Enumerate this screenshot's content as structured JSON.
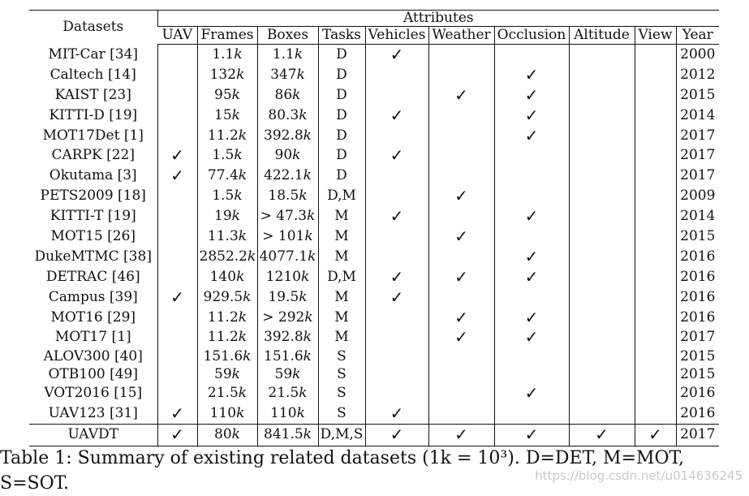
{
  "table": {
    "datasets_header": "Datasets",
    "attributes_header": "Attributes",
    "columns": [
      "UAV",
      "Frames",
      "Boxes",
      "Tasks",
      "Vehicles",
      "Weather",
      "Occlusion",
      "Altitude",
      "View",
      "Year"
    ],
    "check_symbol": "✓",
    "rows": [
      {
        "dataset": "MIT-Car [34]",
        "uav": false,
        "frames": "1.1",
        "boxes": "1.1",
        "tasks": "D",
        "vehicles": true,
        "weather": false,
        "occlusion": false,
        "altitude": false,
        "view": false,
        "year": "2000"
      },
      {
        "dataset": "Caltech [14]",
        "uav": false,
        "frames": "132",
        "boxes": "347",
        "tasks": "D",
        "vehicles": false,
        "weather": false,
        "occlusion": true,
        "altitude": false,
        "view": false,
        "year": "2012"
      },
      {
        "dataset": "KAIST [23]",
        "uav": false,
        "frames": "95",
        "boxes": "86",
        "tasks": "D",
        "vehicles": false,
        "weather": true,
        "occlusion": true,
        "altitude": false,
        "view": false,
        "year": "2015"
      },
      {
        "dataset": "KITTI-D [19]",
        "uav": false,
        "frames": "15",
        "boxes": "80.3",
        "tasks": "D",
        "vehicles": true,
        "weather": false,
        "occlusion": true,
        "altitude": false,
        "view": false,
        "year": "2014"
      },
      {
        "dataset": "MOT17Det [1]",
        "uav": false,
        "frames": "11.2",
        "boxes": "392.8",
        "tasks": "D",
        "vehicles": false,
        "weather": false,
        "occlusion": true,
        "altitude": false,
        "view": false,
        "year": "2017"
      },
      {
        "dataset": "CARPK [22]",
        "uav": true,
        "frames": "1.5",
        "boxes": "90",
        "tasks": "D",
        "vehicles": true,
        "weather": false,
        "occlusion": false,
        "altitude": false,
        "view": false,
        "year": "2017"
      },
      {
        "dataset": "Okutama [3]",
        "uav": true,
        "frames": "77.4",
        "boxes": "422.1",
        "tasks": "D",
        "vehicles": false,
        "weather": false,
        "occlusion": false,
        "altitude": false,
        "view": false,
        "year": "2017"
      },
      {
        "dataset": "PETS2009 [18]",
        "uav": false,
        "frames": "1.5",
        "boxes": "18.5",
        "tasks": "D,M",
        "vehicles": false,
        "weather": true,
        "occlusion": false,
        "altitude": false,
        "view": false,
        "year": "2009"
      },
      {
        "dataset": "KITTI-T [19]",
        "uav": false,
        "frames": "19",
        "boxes": "> 47.3",
        "tasks": "M",
        "vehicles": true,
        "weather": false,
        "occlusion": true,
        "altitude": false,
        "view": false,
        "year": "2014"
      },
      {
        "dataset": "MOT15 [26]",
        "uav": false,
        "frames": "11.3",
        "boxes": "> 101",
        "tasks": "M",
        "vehicles": false,
        "weather": true,
        "occlusion": false,
        "altitude": false,
        "view": false,
        "year": "2015"
      },
      {
        "dataset": "DukeMTMC [38]",
        "uav": false,
        "frames": "2852.2",
        "boxes": "4077.1",
        "tasks": "M",
        "vehicles": false,
        "weather": false,
        "occlusion": true,
        "altitude": false,
        "view": false,
        "year": "2016"
      },
      {
        "dataset": "DETRAC [46]",
        "uav": false,
        "frames": "140",
        "boxes": "1210",
        "tasks": "D,M",
        "vehicles": true,
        "weather": true,
        "occlusion": true,
        "altitude": false,
        "view": false,
        "year": "2016"
      },
      {
        "dataset": "Campus [39]",
        "uav": true,
        "frames": "929.5",
        "boxes": "19.5",
        "tasks": "M",
        "vehicles": true,
        "weather": false,
        "occlusion": false,
        "altitude": false,
        "view": false,
        "year": "2016"
      },
      {
        "dataset": "MOT16 [29]",
        "uav": false,
        "frames": "11.2",
        "boxes": "> 292",
        "tasks": "M",
        "vehicles": false,
        "weather": true,
        "occlusion": true,
        "altitude": false,
        "view": false,
        "year": "2016"
      },
      {
        "dataset": "MOT17 [1]",
        "uav": false,
        "frames": "11.2",
        "boxes": "392.8",
        "tasks": "M",
        "vehicles": false,
        "weather": true,
        "occlusion": true,
        "altitude": false,
        "view": false,
        "year": "2017"
      },
      {
        "dataset": "ALOV300 [40]",
        "uav": false,
        "frames": "151.6",
        "boxes": "151.6",
        "tasks": "S",
        "vehicles": false,
        "weather": false,
        "occlusion": false,
        "altitude": false,
        "view": false,
        "year": "2015"
      },
      {
        "dataset": "OTB100 [49]",
        "uav": false,
        "frames": "59",
        "boxes": "59",
        "tasks": "S",
        "vehicles": false,
        "weather": false,
        "occlusion": false,
        "altitude": false,
        "view": false,
        "year": "2015"
      },
      {
        "dataset": "VOT2016 [15]",
        "uav": false,
        "frames": "21.5",
        "boxes": "21.5",
        "tasks": "S",
        "vehicles": false,
        "weather": false,
        "occlusion": true,
        "altitude": false,
        "view": false,
        "year": "2016"
      },
      {
        "dataset": "UAV123 [31]",
        "uav": true,
        "frames": "110",
        "boxes": "110",
        "tasks": "S",
        "vehicles": true,
        "weather": false,
        "occlusion": false,
        "altitude": false,
        "view": false,
        "year": "2016"
      }
    ],
    "own_row": {
      "dataset": "UAVDT",
      "uav": true,
      "frames": "80",
      "boxes": "841.5",
      "tasks": "D,M,S",
      "vehicles": true,
      "weather": true,
      "occlusion": true,
      "altitude": true,
      "view": true,
      "year": "2017"
    },
    "unit_suffix": "k"
  },
  "caption": {
    "line1": "Table 1: Summary of existing related datasets (1k = 10³). D=DET, M=MOT,",
    "line2": "S=SOT."
  },
  "watermark": "https://blog.csdn.net/u014636245"
}
